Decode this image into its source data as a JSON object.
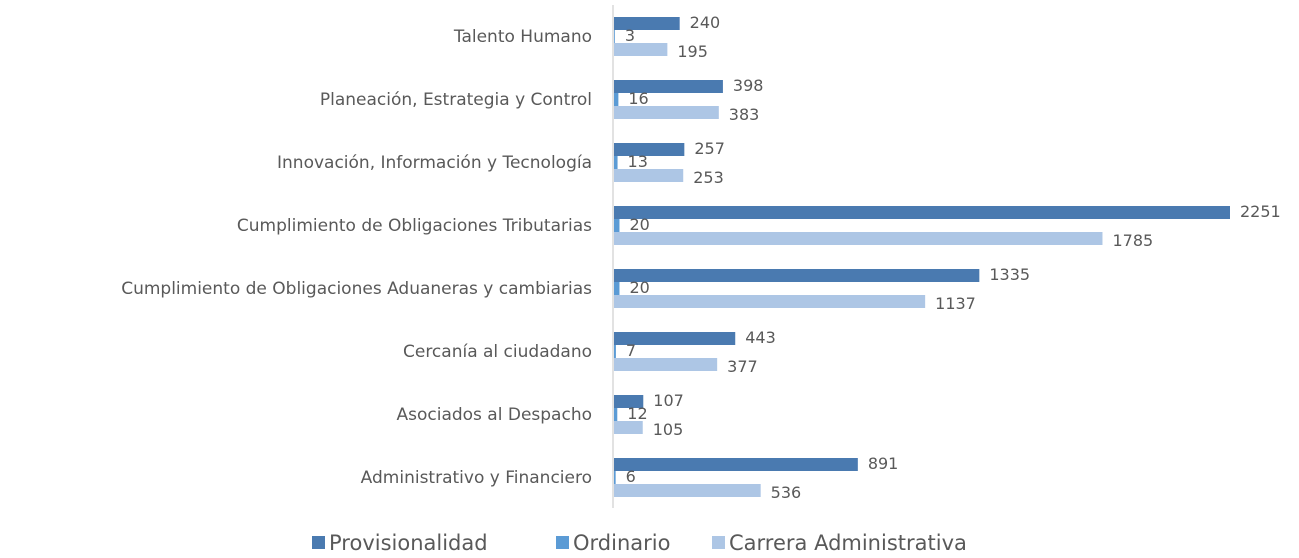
{
  "chart_data": {
    "type": "hbar",
    "categories": [
      "Talento Humano",
      "Planeación, Estrategia y Control",
      "Innovación, Información y Tecnología",
      "Cumplimiento de Obligaciones Tributarias",
      "Cumplimiento de Obligaciones Aduaneras y cambiarias",
      "Cercanía al ciudadano",
      "Asociados al Despacho",
      "Administrativo y Financiero"
    ],
    "series": [
      {
        "name": "Provisionalidad",
        "color": "#4a7ab0",
        "values": [
          240,
          398,
          257,
          2251,
          1335,
          443,
          107,
          891
        ]
      },
      {
        "name": "Ordinario",
        "color": "#5b9bd5",
        "values": [
          3,
          16,
          13,
          20,
          20,
          7,
          12,
          6
        ]
      },
      {
        "name": "Carrera Administrativa",
        "color": "#adc6e5",
        "values": [
          195,
          383,
          253,
          1785,
          1137,
          377,
          105,
          536
        ]
      }
    ],
    "legend": "bottom"
  }
}
